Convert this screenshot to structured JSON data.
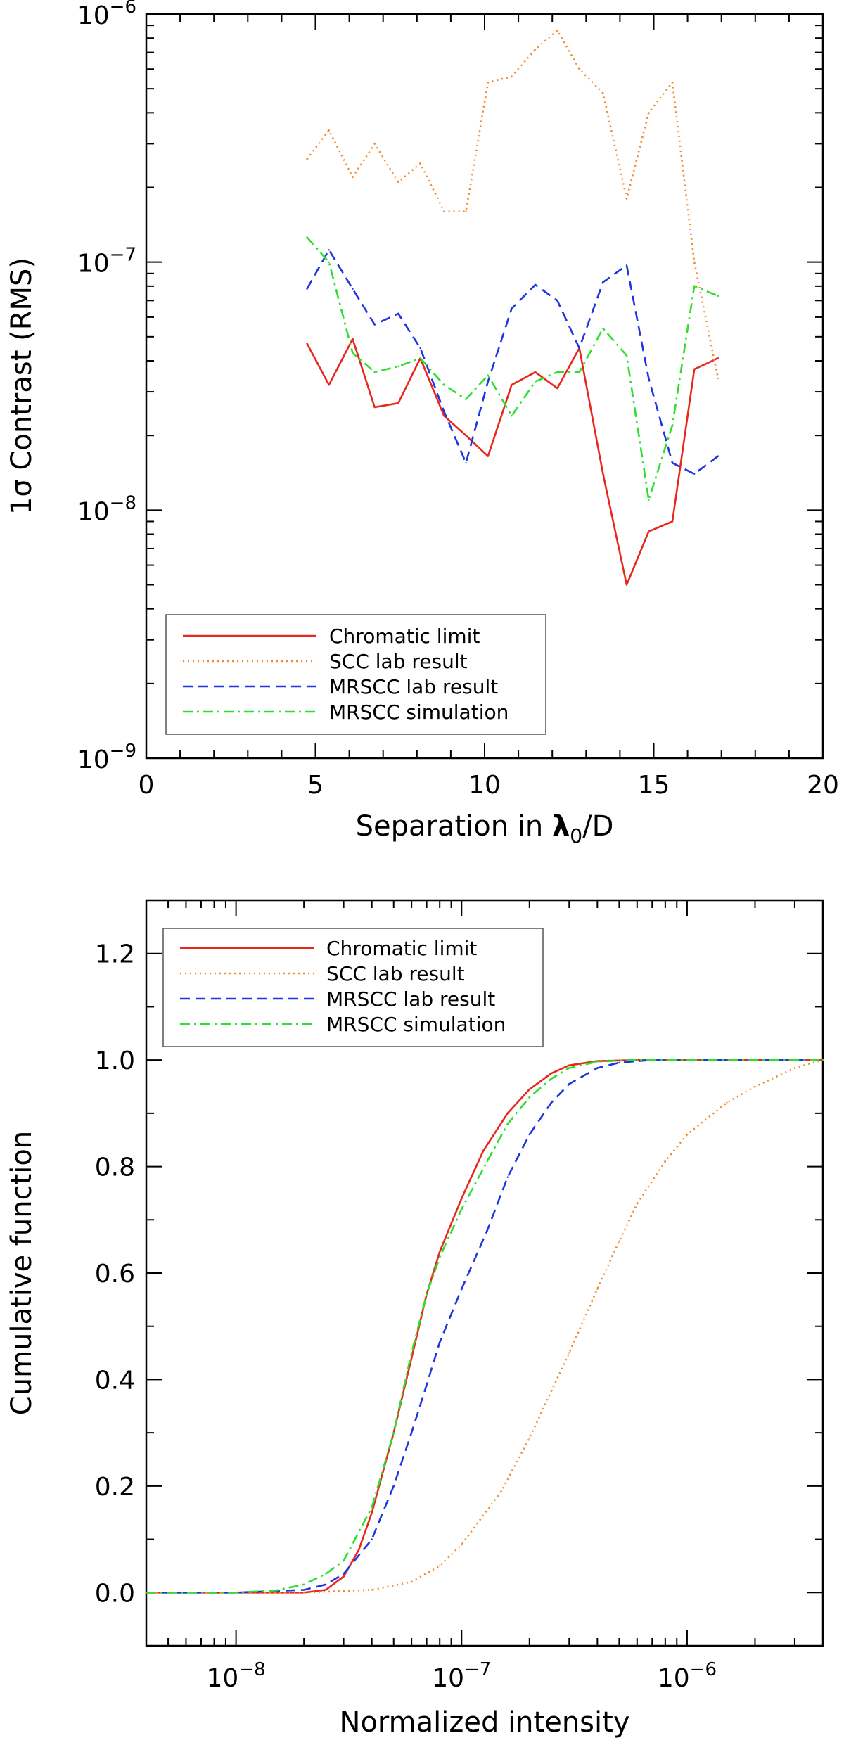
{
  "chart_data": [
    {
      "type": "line",
      "yscale": "log",
      "xlabel": "Separation in λ0/D",
      "xlabel_parts": {
        "prefix": "Separation in ",
        "symbol": "λ",
        "sub": "0",
        "suffix": "/D"
      },
      "ylabel": "1σ Contrast (RMS)",
      "xlim": [
        0,
        20
      ],
      "ylim": [
        1e-09,
        1e-06
      ],
      "x_ticks": [
        "0",
        "5",
        "10",
        "15",
        "20"
      ],
      "y_ticks": [
        {
          "value": 1e-06,
          "base": "10",
          "exp": "−6"
        },
        {
          "value": 1e-07,
          "base": "10",
          "exp": "−7"
        },
        {
          "value": 1e-08,
          "base": "10",
          "exp": "−8"
        },
        {
          "value": 1e-09,
          "base": "10",
          "exp": "−9"
        }
      ],
      "legend_position": "bottom-left",
      "series": [
        {
          "name": "Chromatic limit",
          "color": "#e8281f",
          "style": "solid",
          "x": [
            4.75,
            5.4,
            6.1,
            6.75,
            7.45,
            8.1,
            8.8,
            9.45,
            10.1,
            10.8,
            11.5,
            12.15,
            12.8,
            13.5,
            14.2,
            14.85,
            15.55,
            16.2,
            16.9
          ],
          "y": [
            4.7e-08,
            3.2e-08,
            4.9e-08,
            2.6e-08,
            2.7e-08,
            4.1e-08,
            2.4e-08,
            2e-08,
            1.65e-08,
            3.2e-08,
            3.6e-08,
            3.1e-08,
            4.5e-08,
            1.4e-08,
            5e-09,
            8.2e-09,
            9e-09,
            3.7e-08,
            4.1e-08
          ]
        },
        {
          "name": "SCC lab result",
          "color": "#f0892a",
          "style": "dotted",
          "x": [
            4.75,
            5.4,
            6.1,
            6.75,
            7.45,
            8.1,
            8.8,
            9.45,
            10.1,
            10.8,
            11.5,
            12.15,
            12.8,
            13.5,
            14.2,
            14.85,
            15.55,
            16.2,
            16.9
          ],
          "y": [
            2.6e-07,
            3.4e-07,
            2.2e-07,
            3e-07,
            2.1e-07,
            2.5e-07,
            1.6e-07,
            1.6e-07,
            5.3e-07,
            5.6e-07,
            7.2e-07,
            8.6e-07,
            6e-07,
            4.8e-07,
            1.8e-07,
            4e-07,
            5.3e-07,
            1e-07,
            3.4e-08
          ]
        },
        {
          "name": "MRSCC lab result",
          "color": "#1f35e0",
          "style": "dashed",
          "x": [
            4.75,
            5.4,
            6.1,
            6.75,
            7.45,
            8.1,
            8.8,
            9.45,
            10.1,
            10.8,
            11.5,
            12.15,
            12.8,
            13.5,
            14.2,
            14.85,
            15.55,
            16.2,
            16.9
          ],
          "y": [
            7.8e-08,
            1.12e-07,
            7.8e-08,
            5.6e-08,
            6.2e-08,
            4.5e-08,
            2.5e-08,
            1.55e-08,
            3.3e-08,
            6.5e-08,
            8.1e-08,
            7e-08,
            4.5e-08,
            8.3e-08,
            9.7e-08,
            3.4e-08,
            1.55e-08,
            1.4e-08,
            1.65e-08
          ]
        },
        {
          "name": "MRSCC simulation",
          "color": "#2ee02e",
          "style": "dashdot",
          "x": [
            4.75,
            5.4,
            6.1,
            6.75,
            7.45,
            8.1,
            8.8,
            9.45,
            10.1,
            10.8,
            11.5,
            12.15,
            12.8,
            13.5,
            14.2,
            14.85,
            15.55,
            16.2,
            16.9
          ],
          "y": [
            1.26e-07,
            1e-07,
            4.3e-08,
            3.6e-08,
            3.8e-08,
            4.1e-08,
            3.2e-08,
            2.8e-08,
            3.5e-08,
            2.4e-08,
            3.3e-08,
            3.6e-08,
            3.6e-08,
            5.4e-08,
            4.2e-08,
            1.1e-08,
            2.2e-08,
            8e-08,
            7.3e-08
          ]
        }
      ]
    },
    {
      "type": "line",
      "xscale": "log",
      "xlabel": "Normalized intensity",
      "ylabel": "Cumulative function",
      "xlim": [
        4e-09,
        4e-06
      ],
      "ylim": [
        -0.1,
        1.3
      ],
      "x_ticks": [
        {
          "value": 1e-08,
          "base": "10",
          "exp": "−8"
        },
        {
          "value": 1e-07,
          "base": "10",
          "exp": "−7"
        },
        {
          "value": 1e-06,
          "base": "10",
          "exp": "−6"
        }
      ],
      "y_ticks": [
        "0.0",
        "0.2",
        "0.4",
        "0.6",
        "0.8",
        "1.0",
        "1.2"
      ],
      "legend_position": "top-left",
      "series": [
        {
          "name": "Chromatic limit",
          "color": "#e8281f",
          "style": "solid",
          "x": [
            4e-09,
            1e-08,
            2e-08,
            2.5e-08,
            3e-08,
            3.5e-08,
            4e-08,
            5e-08,
            6e-08,
            7e-08,
            8e-08,
            1e-07,
            1.25e-07,
            1.6e-07,
            2e-07,
            2.5e-07,
            3e-07,
            4e-07,
            6e-07,
            1e-06,
            2e-06,
            4e-06
          ],
          "y": [
            0,
            0,
            0,
            0.005,
            0.03,
            0.08,
            0.15,
            0.3,
            0.44,
            0.56,
            0.64,
            0.74,
            0.83,
            0.9,
            0.945,
            0.975,
            0.99,
            0.998,
            1.0,
            1.0,
            1.0,
            1.0
          ]
        },
        {
          "name": "SCC lab result",
          "color": "#f0892a",
          "style": "dotted",
          "x": [
            4e-09,
            1e-08,
            2e-08,
            4e-08,
            6e-08,
            8e-08,
            1e-07,
            1.5e-07,
            2e-07,
            3e-07,
            4e-07,
            5e-07,
            6e-07,
            8e-07,
            1e-06,
            1.5e-06,
            2e-06,
            3e-06,
            4e-06
          ],
          "y": [
            0,
            0,
            0,
            0.005,
            0.02,
            0.05,
            0.09,
            0.19,
            0.29,
            0.45,
            0.57,
            0.66,
            0.73,
            0.81,
            0.86,
            0.92,
            0.95,
            0.985,
            1.0
          ]
        },
        {
          "name": "MRSCC lab result",
          "color": "#1f35e0",
          "style": "dashed",
          "x": [
            4e-09,
            1e-08,
            2e-08,
            2.5e-08,
            3e-08,
            4e-08,
            5e-08,
            6e-08,
            7e-08,
            8e-08,
            1e-07,
            1.3e-07,
            1.6e-07,
            2e-07,
            2.5e-07,
            3e-07,
            4e-07,
            5e-07,
            7e-07,
            1e-06,
            4e-06
          ],
          "y": [
            0,
            0,
            0.005,
            0.015,
            0.035,
            0.1,
            0.2,
            0.3,
            0.39,
            0.47,
            0.57,
            0.68,
            0.78,
            0.86,
            0.92,
            0.955,
            0.985,
            0.995,
            1.0,
            1.0,
            1.0
          ]
        },
        {
          "name": "MRSCC simulation",
          "color": "#2ee02e",
          "style": "dashdot",
          "x": [
            4e-09,
            1e-08,
            1.5e-08,
            2e-08,
            2.5e-08,
            3e-08,
            4e-08,
            5e-08,
            6e-08,
            7e-08,
            8e-08,
            1e-07,
            1.3e-07,
            1.6e-07,
            2e-07,
            2.5e-07,
            3e-07,
            4e-07,
            6e-07,
            1e-06,
            4e-06
          ],
          "y": [
            0,
            0,
            0.004,
            0.015,
            0.035,
            0.06,
            0.16,
            0.3,
            0.45,
            0.56,
            0.63,
            0.72,
            0.81,
            0.88,
            0.93,
            0.965,
            0.985,
            0.997,
            1.0,
            1.0,
            1.0
          ]
        }
      ]
    }
  ]
}
